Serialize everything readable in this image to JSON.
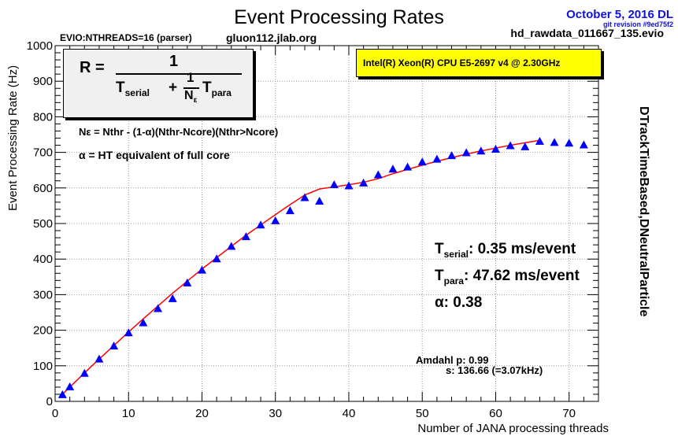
{
  "header": {
    "title": "Event Processing Rates",
    "date": "October  5, 2016 DL",
    "git_revision": "git revision #9ed75f2",
    "filename": "hd_rawdata_011667_135.evio",
    "evio_threads": "EVIO:NTHREADS=16 (parser)",
    "host": "gluon112.jlab.org",
    "cpu": "Intel(R) Xeon(R) CPU E5-2697 v4 @ 2.30GHz",
    "side_label": "DTrackTimeBased,DNeutralParticle"
  },
  "formula": {
    "lhs": "R =",
    "numerator": "1",
    "t_serial": "T",
    "t_serial_sub": "serial",
    "plus": "+",
    "frac_num": "1",
    "frac_den": "N",
    "frac_den_sub": "ε",
    "t_para": "T",
    "t_para_sub": "para"
  },
  "annotations": {
    "neps_line": "Nε = Nthr - (1-α)(Nthr-Ncore)(Nthr>Ncore)",
    "alpha_line": "α = HT equivalent of full core",
    "t_serial_label": "T",
    "t_serial_sub": "serial",
    "t_serial_value": ": 0.35 ms/event",
    "t_para_label": "T",
    "t_para_sub": "para",
    "t_para_value": ": 47.62 ms/event",
    "alpha_value": "α: 0.38",
    "amdahl_p": "Amdahl p: 0.99",
    "amdahl_s": "s: 136.66 (=3.07kHz)"
  },
  "chart_data": {
    "type": "scatter",
    "title": "Event Processing Rates",
    "xlabel": "Number of JANA processing threads",
    "ylabel": "Event Processing Rate (Hz)",
    "xlim": [
      0,
      74
    ],
    "ylim": [
      0,
      1000
    ],
    "xticks": [
      0,
      10,
      20,
      30,
      40,
      50,
      60,
      70
    ],
    "yticks": [
      0,
      100,
      200,
      300,
      400,
      500,
      600,
      700,
      800,
      900,
      1000
    ],
    "grid": true,
    "series": [
      {
        "type": "scatter",
        "color": "#0000ff",
        "x": [
          1,
          2,
          4,
          6,
          8,
          10,
          12,
          14,
          16,
          18,
          20,
          22,
          24,
          26,
          28,
          30,
          32,
          34,
          36,
          38,
          40,
          42,
          44,
          46,
          48,
          50,
          52,
          54,
          56,
          58,
          60,
          62,
          64,
          66,
          68,
          70,
          72
        ],
        "y": [
          18,
          40,
          78,
          118,
          155,
          192,
          220,
          260,
          288,
          332,
          368,
          400,
          435,
          462,
          495,
          507,
          535,
          572,
          562,
          608,
          605,
          613,
          636,
          652,
          658,
          672,
          680,
          690,
          698,
          703,
          708,
          718,
          715,
          730,
          727,
          725,
          720
        ]
      },
      {
        "type": "line",
        "color": "#ff0000",
        "x": [
          1,
          2,
          4,
          6,
          8,
          10,
          12,
          14,
          16,
          18,
          20,
          22,
          24,
          26,
          28,
          30,
          32,
          34,
          36,
          38,
          40,
          42,
          44,
          46,
          48,
          50,
          52,
          54,
          56,
          58,
          60,
          62,
          64,
          66
        ],
        "y": [
          20,
          40,
          80,
          119,
          157,
          195,
          232,
          268,
          304,
          338,
          372,
          404,
          436,
          467,
          496,
          525,
          553,
          580,
          597,
          603,
          609,
          616,
          626,
          640,
          652,
          664,
          675,
          685,
          695,
          704,
          712,
          720,
          727,
          734
        ]
      }
    ]
  }
}
